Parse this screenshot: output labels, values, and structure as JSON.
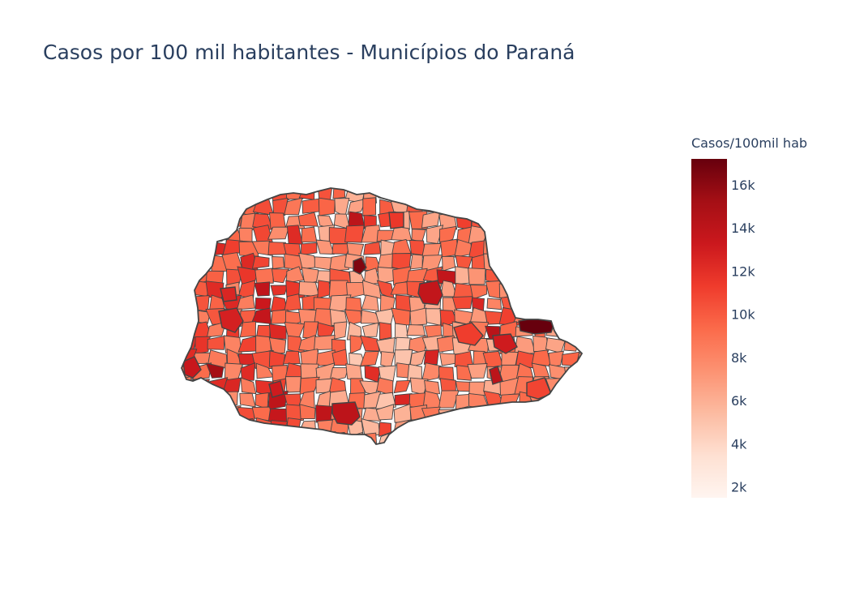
{
  "title": "Casos por 100 mil habitantes - Municípios do Paraná",
  "colorbar": {
    "title": "Casos/100mil hab",
    "min": 1500,
    "max": 17200,
    "ticks": [
      {
        "value": 2000,
        "label": "2k"
      },
      {
        "value": 4000,
        "label": "4k"
      },
      {
        "value": 6000,
        "label": "6k"
      },
      {
        "value": 8000,
        "label": "8k"
      },
      {
        "value": 10000,
        "label": "10k"
      },
      {
        "value": 12000,
        "label": "12k"
      },
      {
        "value": 14000,
        "label": "14k"
      },
      {
        "value": 16000,
        "label": "16k"
      }
    ],
    "colorscale": [
      "#fff5f0",
      "#fee0d2",
      "#fcbba1",
      "#fc9272",
      "#fb6a4a",
      "#ef3b2c",
      "#cb181d",
      "#a50f15",
      "#67000d"
    ]
  },
  "map": {
    "region": "Paraná",
    "border_color": "#444444"
  }
}
